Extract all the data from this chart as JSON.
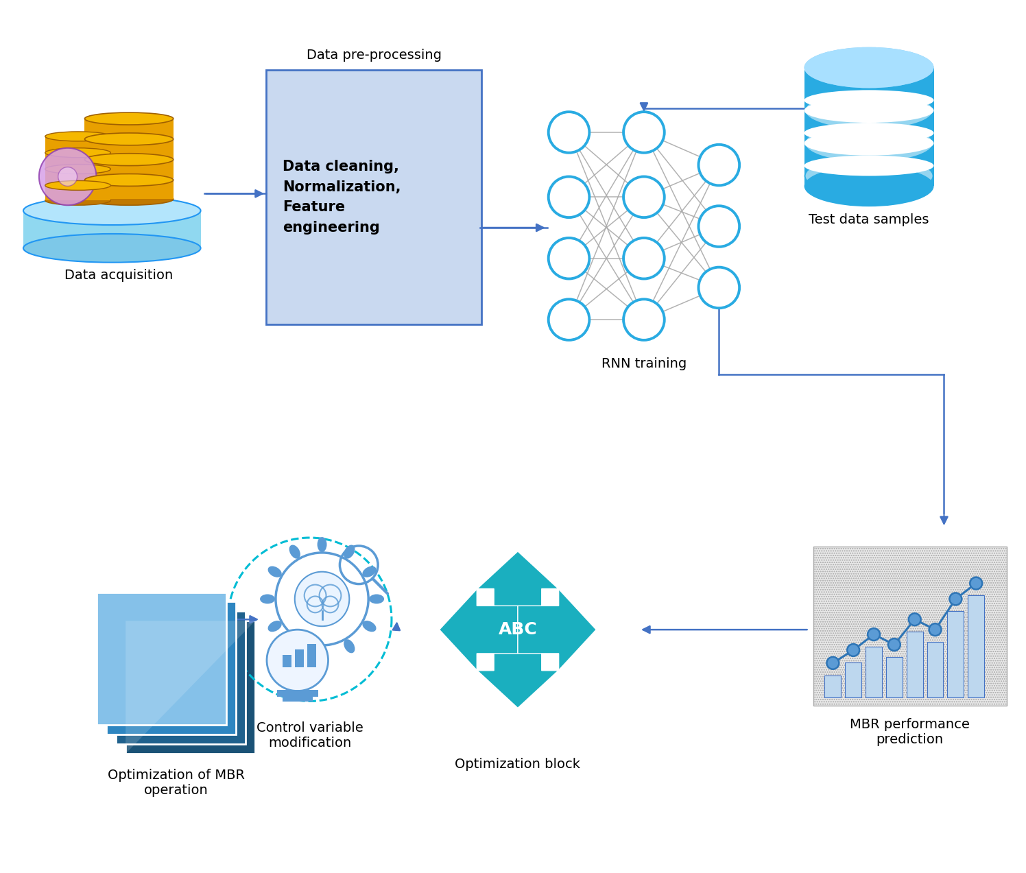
{
  "bg_color": "#ffffff",
  "arrow_color": "#4472C4",
  "box_fill": "#C9D9F0",
  "box_edge": "#4472C4",
  "node_stroke": "#29ABE2",
  "conn_color": "#AAAAAA",
  "db_fill": "#29ABE2",
  "db_stripe": "#ffffff",
  "teal_abc": "#1AAFBF",
  "gear_blue": "#5B9BD5",
  "dashed_cyan": "#00BCD4",
  "blue_bar_fill": "#BDD7EE",
  "blue_bar_edge": "#4472C4",
  "blue_line": "#2E75B6",
  "blue_dot": "#5B9BD5",
  "stack_c0": "#1A5276",
  "stack_c1": "#1F618D",
  "stack_c2": "#2E86C1",
  "stack_c3": "#85C1E9",
  "labels": {
    "data_acquisition": "Data acquisition",
    "pre_title": "Data pre-processing",
    "pre_content": "Data cleaning,\nNormalization,\nFeature\nengineering",
    "test_data": "Test data samples",
    "rnn": "RNN training",
    "mbr": "MBR performance\nprediction",
    "opt_block": "Optimization block",
    "ctrl_var": "Control variable\nmodification",
    "opt_mbr": "Optimization of MBR\noperation",
    "abc": "ABC"
  },
  "fs": 14
}
